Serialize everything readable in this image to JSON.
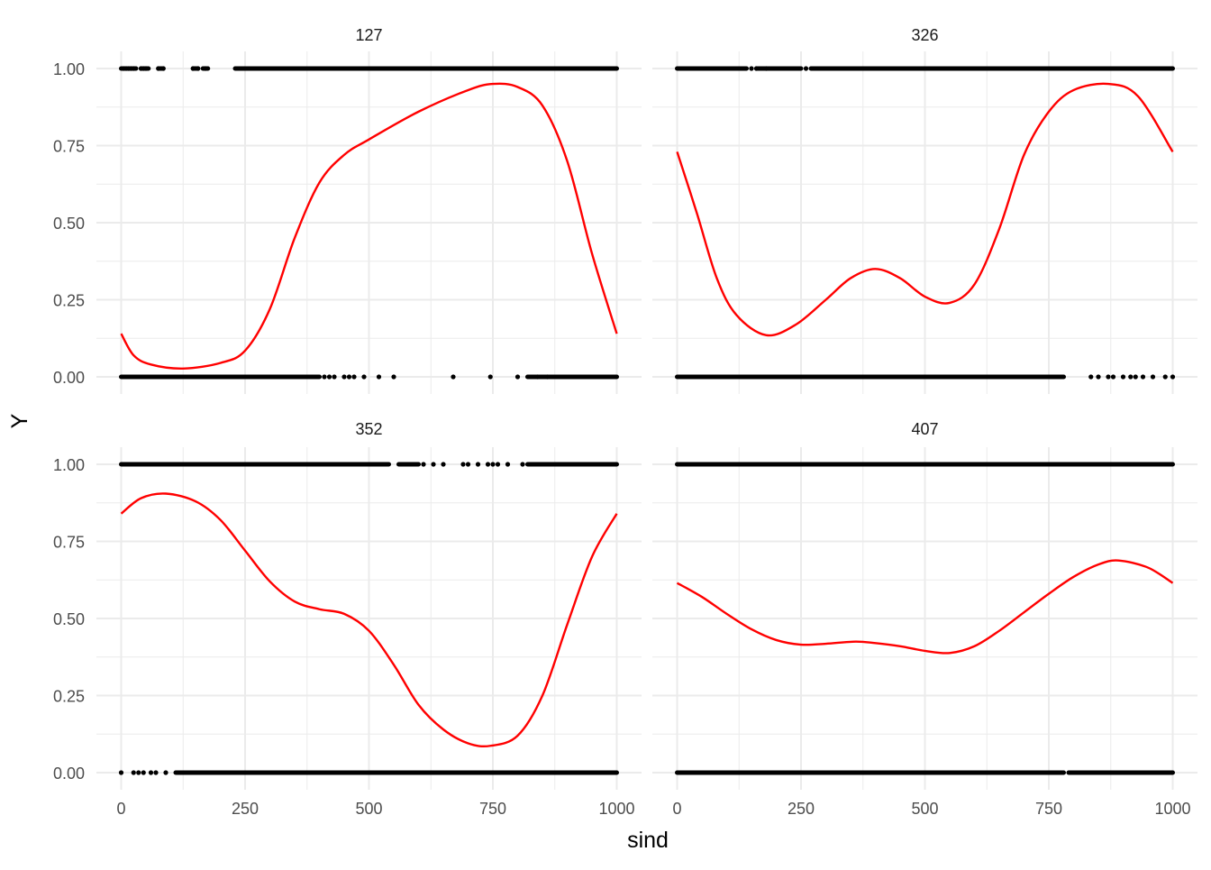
{
  "chart_data": {
    "type": "scatter",
    "xlabel": "sind",
    "ylabel": "Y",
    "xlim": [
      0,
      1000
    ],
    "ylim": [
      0,
      1
    ],
    "x_ticks": [
      "0",
      "250",
      "500",
      "750",
      "1000"
    ],
    "y_ticks": [
      "0.00",
      "0.25",
      "0.50",
      "0.75",
      "1.00"
    ],
    "grid": true,
    "colors": {
      "points": "#000000",
      "smooth": "#ff0000",
      "grid": "#ebebeb",
      "text": "#4d4d4d"
    },
    "panels": [
      {
        "title": "127",
        "ones_ranges": [
          [
            0,
            30
          ],
          [
            40,
            55
          ],
          [
            75,
            85
          ],
          [
            145,
            155
          ],
          [
            165,
            175
          ],
          [
            230,
            1000
          ]
        ],
        "ones_isolated": [
          5,
          10,
          15,
          20,
          25,
          40,
          45,
          50,
          75,
          85,
          145,
          155,
          170
        ],
        "zeros_ranges": [
          [
            0,
            400
          ]
        ],
        "zeros_isolated": [
          410,
          420,
          430,
          450,
          460,
          470,
          490,
          520,
          550,
          670,
          745,
          800,
          840,
          860
        ],
        "zeros_ranges_extra": [
          [
            820,
            1000
          ]
        ],
        "smooth": [
          [
            0,
            0.14
          ],
          [
            25,
            0.07
          ],
          [
            60,
            0.04
          ],
          [
            125,
            0.027
          ],
          [
            200,
            0.045
          ],
          [
            250,
            0.085
          ],
          [
            300,
            0.22
          ],
          [
            350,
            0.45
          ],
          [
            400,
            0.63
          ],
          [
            450,
            0.72
          ],
          [
            500,
            0.77
          ],
          [
            600,
            0.86
          ],
          [
            700,
            0.93
          ],
          [
            750,
            0.95
          ],
          [
            800,
            0.94
          ],
          [
            850,
            0.88
          ],
          [
            900,
            0.7
          ],
          [
            950,
            0.4
          ],
          [
            1000,
            0.14
          ]
        ]
      },
      {
        "title": "326",
        "ones_ranges": [
          [
            0,
            140
          ],
          [
            160,
            250
          ],
          [
            270,
            1000
          ]
        ],
        "ones_isolated": [
          150,
          160,
          180,
          260
        ],
        "zeros_ranges": [
          [
            0,
            780
          ]
        ],
        "zeros_isolated": [
          835,
          850,
          870,
          880,
          900,
          915,
          925,
          940,
          960,
          985,
          1000
        ],
        "zeros_ranges_extra": [],
        "smooth": [
          [
            0,
            0.73
          ],
          [
            40,
            0.53
          ],
          [
            80,
            0.32
          ],
          [
            120,
            0.2
          ],
          [
            180,
            0.135
          ],
          [
            240,
            0.17
          ],
          [
            300,
            0.25
          ],
          [
            350,
            0.32
          ],
          [
            400,
            0.35
          ],
          [
            450,
            0.32
          ],
          [
            500,
            0.26
          ],
          [
            550,
            0.24
          ],
          [
            600,
            0.3
          ],
          [
            650,
            0.48
          ],
          [
            700,
            0.72
          ],
          [
            750,
            0.86
          ],
          [
            800,
            0.93
          ],
          [
            870,
            0.95
          ],
          [
            930,
            0.91
          ],
          [
            1000,
            0.73
          ]
        ]
      },
      {
        "title": "352",
        "ones_ranges": [
          [
            0,
            540
          ],
          [
            560,
            600
          ],
          [
            820,
            1000
          ]
        ],
        "ones_isolated": [
          610,
          630,
          650,
          690,
          700,
          720,
          740,
          750,
          760,
          780,
          810
        ],
        "zeros_ranges": [
          [
            110,
            1000
          ]
        ],
        "zeros_isolated": [
          0,
          25,
          35,
          45,
          60,
          70,
          90
        ],
        "zeros_ranges_extra": [],
        "smooth": [
          [
            0,
            0.84
          ],
          [
            40,
            0.89
          ],
          [
            90,
            0.905
          ],
          [
            150,
            0.88
          ],
          [
            200,
            0.82
          ],
          [
            250,
            0.72
          ],
          [
            300,
            0.62
          ],
          [
            350,
            0.555
          ],
          [
            400,
            0.53
          ],
          [
            450,
            0.515
          ],
          [
            500,
            0.46
          ],
          [
            550,
            0.35
          ],
          [
            600,
            0.22
          ],
          [
            650,
            0.14
          ],
          [
            700,
            0.095
          ],
          [
            745,
            0.087
          ],
          [
            800,
            0.12
          ],
          [
            850,
            0.25
          ],
          [
            900,
            0.48
          ],
          [
            950,
            0.7
          ],
          [
            1000,
            0.84
          ]
        ]
      },
      {
        "title": "407",
        "ones_ranges": [
          [
            0,
            1000
          ]
        ],
        "ones_isolated": [],
        "zeros_ranges": [
          [
            0,
            780
          ],
          [
            790,
            1000
          ]
        ],
        "zeros_isolated": [],
        "zeros_ranges_extra": [],
        "smooth": [
          [
            0,
            0.615
          ],
          [
            50,
            0.57
          ],
          [
            100,
            0.515
          ],
          [
            150,
            0.465
          ],
          [
            200,
            0.43
          ],
          [
            250,
            0.415
          ],
          [
            300,
            0.418
          ],
          [
            360,
            0.425
          ],
          [
            400,
            0.42
          ],
          [
            450,
            0.41
          ],
          [
            500,
            0.395
          ],
          [
            550,
            0.388
          ],
          [
            600,
            0.41
          ],
          [
            650,
            0.46
          ],
          [
            700,
            0.52
          ],
          [
            750,
            0.58
          ],
          [
            800,
            0.635
          ],
          [
            850,
            0.675
          ],
          [
            890,
            0.688
          ],
          [
            950,
            0.665
          ],
          [
            1000,
            0.615
          ]
        ]
      }
    ]
  }
}
